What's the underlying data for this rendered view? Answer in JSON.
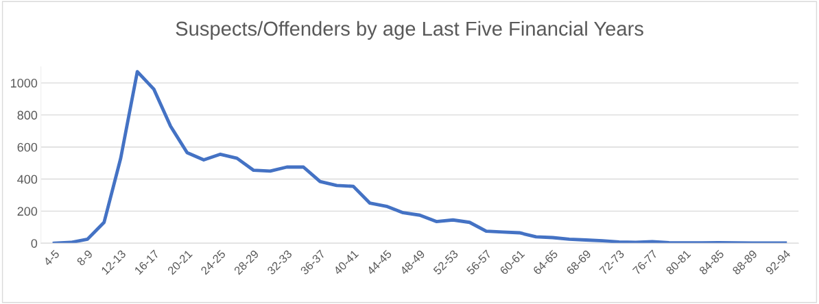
{
  "chart_data": {
    "type": "line",
    "title": "Suspects/Offenders by age Last Five Financial Years",
    "categories": [
      "4-5",
      null,
      "8-9",
      null,
      "12-13",
      null,
      "16-17",
      null,
      "20-21",
      null,
      "24-25",
      null,
      "28-29",
      null,
      "32-33",
      null,
      "36-37",
      null,
      "40-41",
      null,
      "44-45",
      null,
      "48-49",
      null,
      "52-53",
      null,
      "56-57",
      null,
      "60-61",
      null,
      "64-65",
      null,
      "68-69",
      null,
      "72-73",
      null,
      "76-77",
      null,
      "80-81",
      null,
      "84-85",
      null,
      "88-89",
      null,
      "92-94"
    ],
    "series": [
      {
        "color": "#4472c4",
        "values": [
          0,
          5,
          25,
          130,
          530,
          1070,
          960,
          730,
          565,
          520,
          555,
          530,
          455,
          450,
          475,
          475,
          385,
          360,
          355,
          250,
          230,
          190,
          175,
          135,
          145,
          130,
          75,
          70,
          65,
          40,
          35,
          25,
          20,
          15,
          8,
          5,
          10,
          3,
          2,
          2,
          3,
          2,
          1,
          1,
          1
        ]
      }
    ],
    "ylim": [
      0,
      1100
    ],
    "yticks": [
      0,
      200,
      400,
      600,
      800,
      1000
    ],
    "grid": "y",
    "marker": "none",
    "line_style": "solid"
  }
}
